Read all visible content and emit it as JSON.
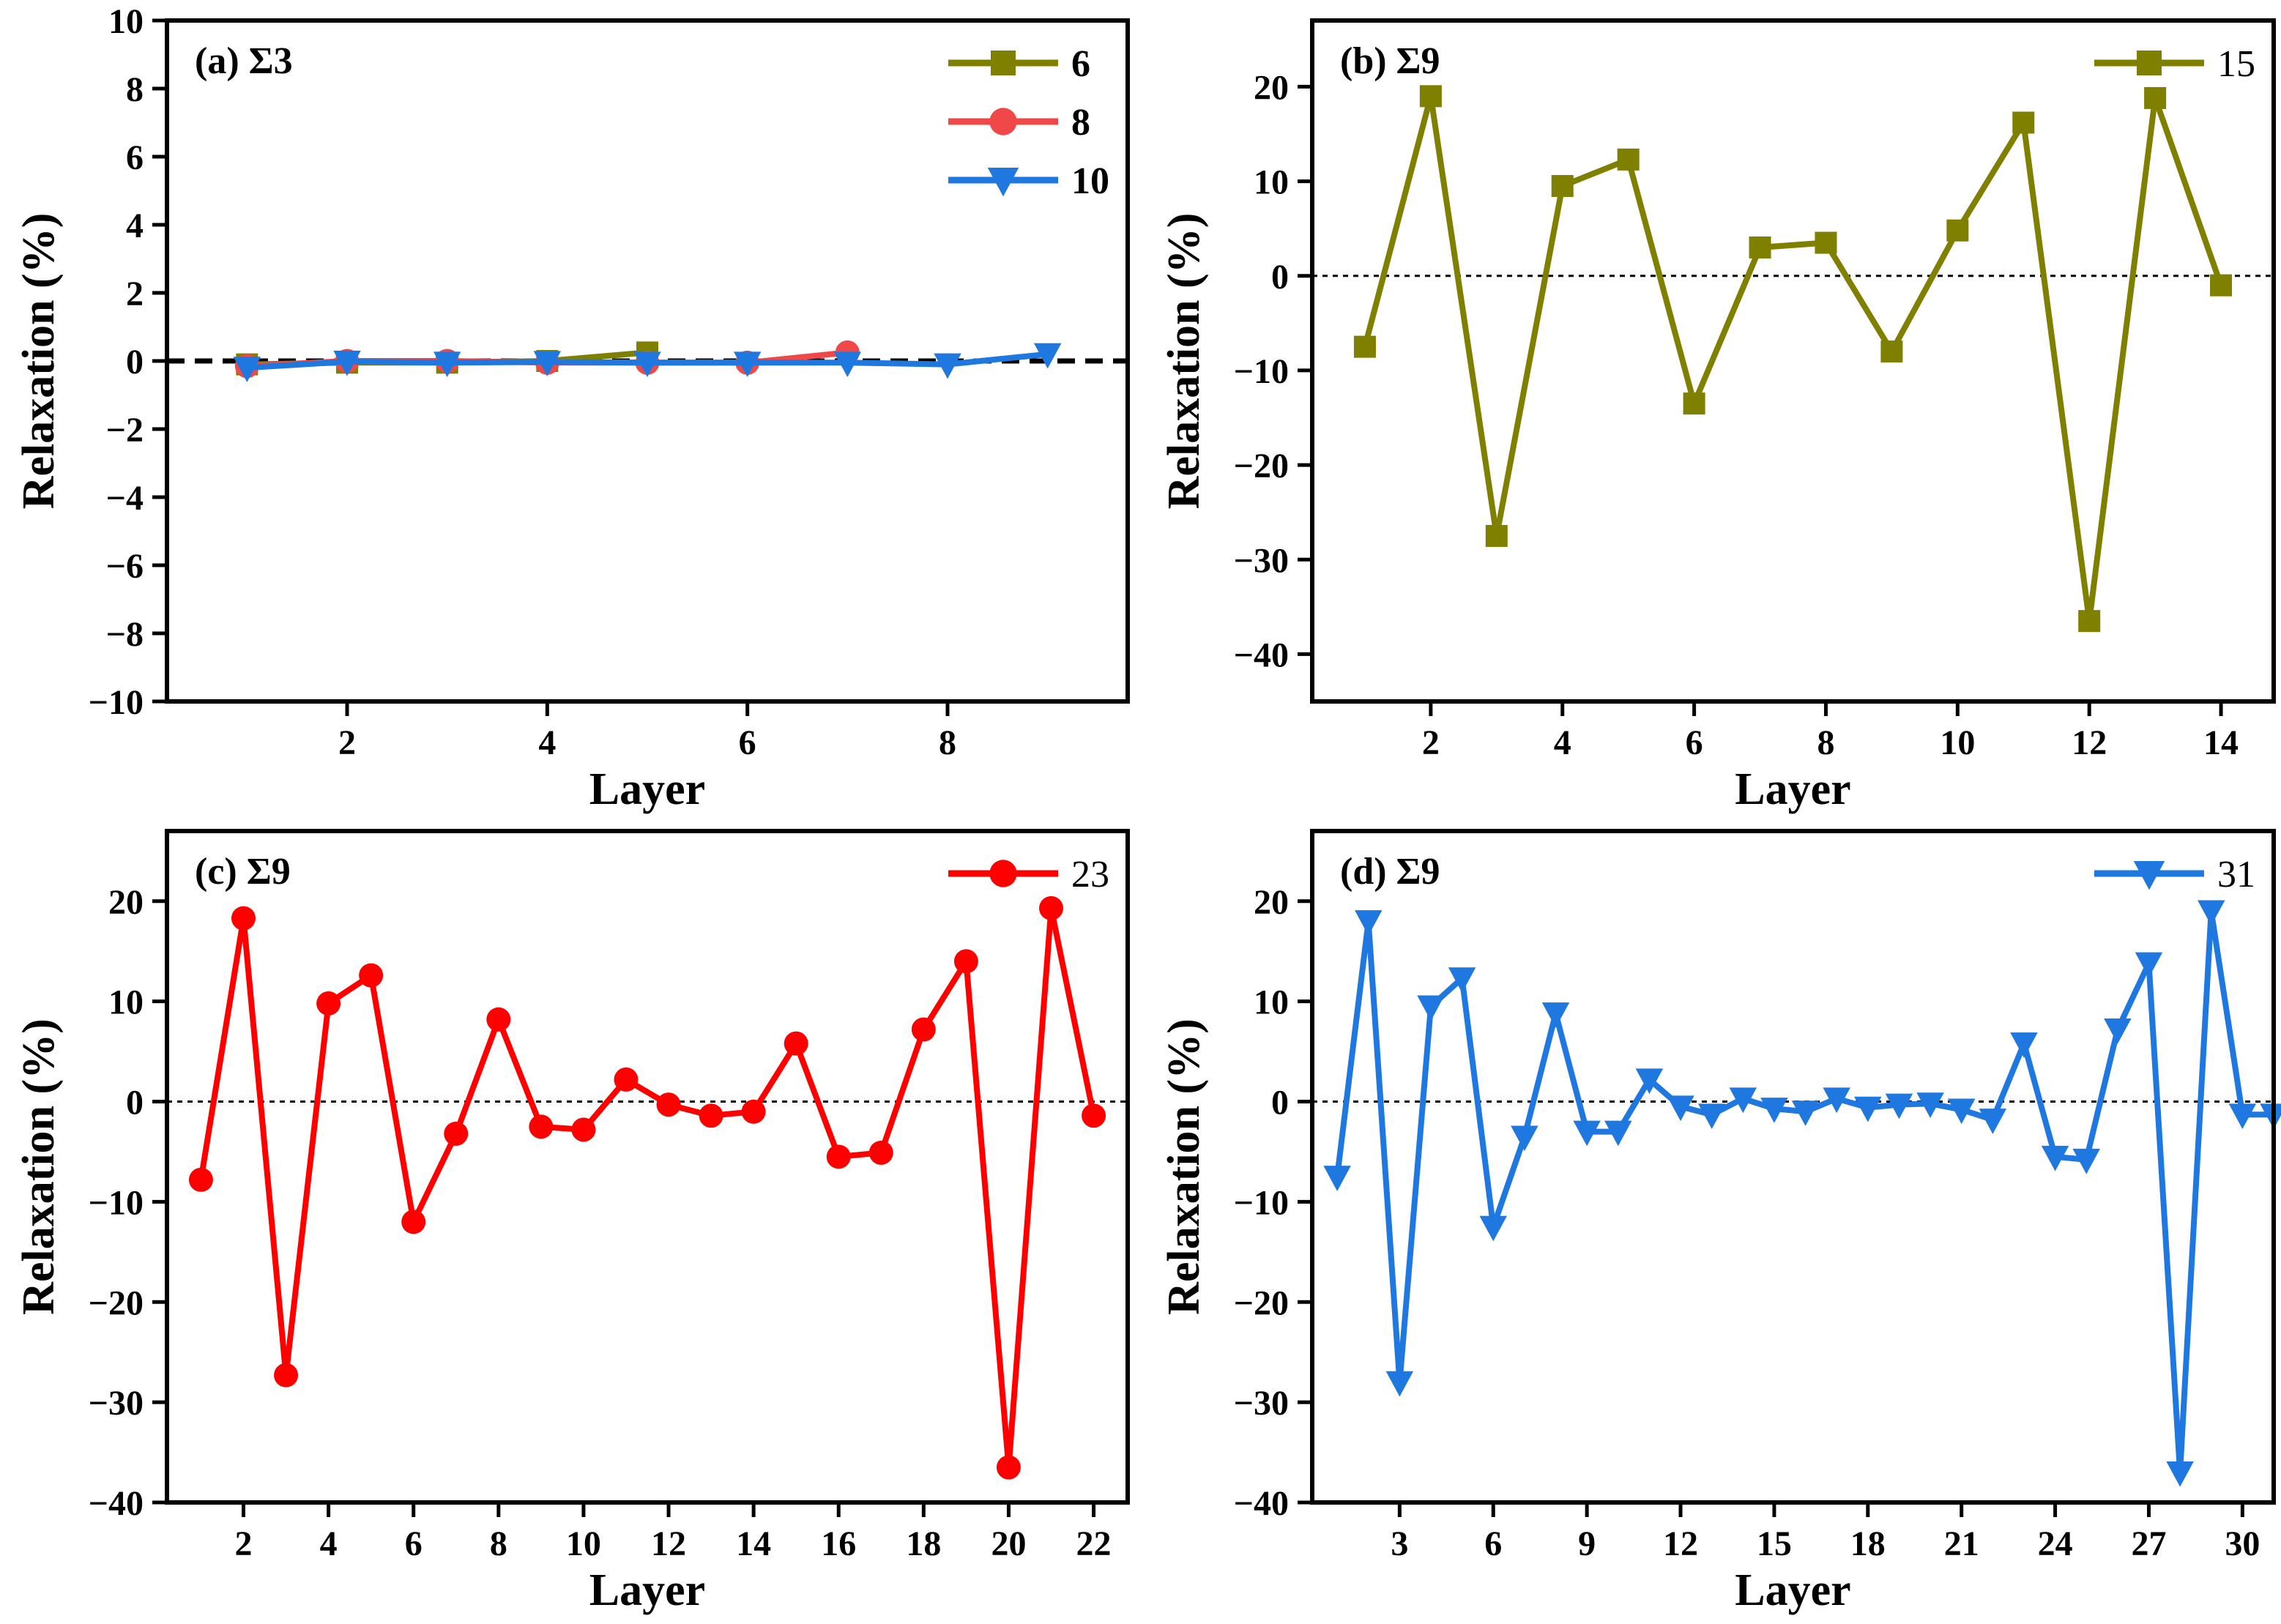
{
  "chart_data": [
    {
      "id": "a",
      "type": "line",
      "panel_label": "(a) Σ3",
      "xlabel": "Layer",
      "ylabel": "Relaxation (%)",
      "xlim": [
        0.2,
        9.8
      ],
      "ylim": [
        -10,
        10
      ],
      "xticks": [
        2,
        4,
        6,
        8
      ],
      "yticks": [
        -10,
        -8,
        -6,
        -4,
        -2,
        0,
        2,
        4,
        6,
        8,
        10
      ],
      "zero_line": "dashed-bold",
      "legend_position": "top-right",
      "legend_bold": true,
      "series": [
        {
          "name": "6",
          "color": "#7f7f00",
          "marker": "square",
          "x": [
            1,
            2,
            3,
            4,
            5
          ],
          "y": [
            -0.1,
            -0.05,
            -0.05,
            0.0,
            0.25
          ]
        },
        {
          "name": "8",
          "color": "#f04848",
          "marker": "circle",
          "x": [
            1,
            2,
            3,
            4,
            5,
            6,
            7
          ],
          "y": [
            -0.15,
            0.0,
            0.0,
            -0.05,
            -0.05,
            -0.05,
            0.25
          ]
        },
        {
          "name": "10",
          "color": "#1f77e0",
          "marker": "triangle-down",
          "x": [
            1,
            2,
            3,
            4,
            5,
            6,
            7,
            8,
            9
          ],
          "y": [
            -0.2,
            -0.02,
            -0.05,
            -0.03,
            -0.05,
            -0.05,
            -0.05,
            -0.1,
            0.2
          ]
        }
      ]
    },
    {
      "id": "b",
      "type": "line",
      "panel_label": "(b) Σ9",
      "xlabel": "Layer",
      "ylabel": "Relaxation (%)",
      "xlim": [
        0.2,
        14.8
      ],
      "ylim": [
        -45,
        27
      ],
      "xticks": [
        2,
        4,
        6,
        8,
        10,
        12,
        14
      ],
      "yticks": [
        -40,
        -30,
        -20,
        -10,
        0,
        10,
        20
      ],
      "zero_line": "dotted",
      "legend_position": "top-right",
      "legend_bold": false,
      "series": [
        {
          "name": "15",
          "color": "#7f7f00",
          "marker": "square",
          "x": [
            1,
            2,
            3,
            4,
            5,
            6,
            7,
            8,
            9,
            10,
            11,
            12,
            13,
            14
          ],
          "y": [
            -7.5,
            19,
            -27.5,
            9.5,
            12.3,
            -13.5,
            3.0,
            3.5,
            -8.0,
            4.8,
            16.2,
            -36.5,
            18.8,
            -1.0
          ]
        }
      ]
    },
    {
      "id": "c",
      "type": "line",
      "panel_label": "(c) Σ9",
      "xlabel": "Layer",
      "ylabel": "Relaxation (%)",
      "xlim": [
        0.2,
        22.8
      ],
      "ylim": [
        -40,
        27
      ],
      "xticks": [
        2,
        4,
        6,
        8,
        10,
        12,
        14,
        16,
        18,
        20,
        22
      ],
      "yticks": [
        -40,
        -30,
        -20,
        -10,
        0,
        10,
        20
      ],
      "zero_line": "dotted",
      "legend_position": "top-right",
      "legend_bold": false,
      "series": [
        {
          "name": "23",
          "color": "#ff0000",
          "marker": "circle",
          "x": [
            1,
            2,
            3,
            4,
            5,
            6,
            7,
            8,
            9,
            10,
            11,
            12,
            13,
            14,
            15,
            16,
            17,
            18,
            19,
            20,
            21,
            22
          ],
          "y": [
            -7.8,
            18.3,
            -27.3,
            9.8,
            12.6,
            -12.0,
            -3.2,
            8.2,
            -2.5,
            -2.8,
            2.2,
            -0.3,
            -1.4,
            -1.0,
            5.8,
            -5.5,
            -5.1,
            7.2,
            14.0,
            -36.5,
            19.3,
            -1.4
          ]
        }
      ]
    },
    {
      "id": "d",
      "type": "line",
      "panel_label": "(d) Σ9",
      "xlabel": "Layer",
      "ylabel": "Relaxation (%)",
      "xlim": [
        0.2,
        31
      ],
      "ylim": [
        -40,
        27
      ],
      "xticks": [
        3,
        6,
        9,
        12,
        15,
        18,
        21,
        24,
        27,
        30
      ],
      "yticks": [
        -40,
        -30,
        -20,
        -10,
        0,
        10,
        20
      ],
      "zero_line": "dotted",
      "legend_position": "top-right",
      "legend_bold": false,
      "series": [
        {
          "name": "31",
          "color": "#1f77e0",
          "marker": "triangle-down",
          "x": [
            1,
            2,
            3,
            4,
            5,
            6,
            7,
            8,
            9,
            10,
            11,
            12,
            13,
            14,
            15,
            16,
            17,
            18,
            19,
            20,
            21,
            22,
            23,
            24,
            25,
            26,
            27,
            28,
            29,
            30,
            31
          ],
          "y": [
            -7.5,
            18.0,
            -28.0,
            9.5,
            12.3,
            -12.5,
            -3.5,
            8.8,
            -3.0,
            -3.0,
            2.2,
            -0.5,
            -1.3,
            0.3,
            -0.7,
            -1.0,
            0.3,
            -0.6,
            -0.3,
            -0.2,
            -0.8,
            -1.8,
            5.8,
            -5.5,
            -5.8,
            7.2,
            13.8,
            -37.0,
            19.0,
            -1.3,
            -1.3
          ]
        }
      ]
    }
  ]
}
